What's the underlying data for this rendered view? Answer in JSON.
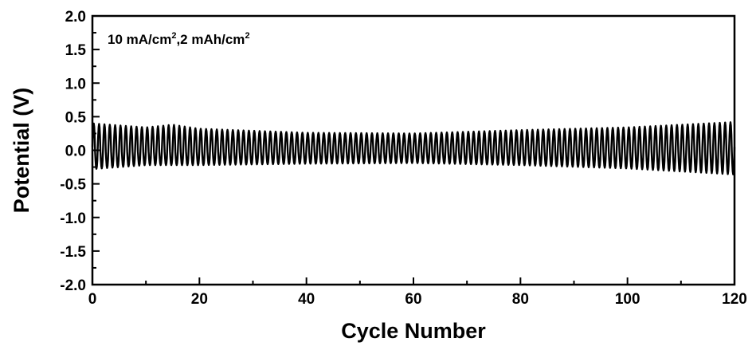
{
  "chart_data": {
    "type": "line",
    "title": "",
    "xlabel": "Cycle Number",
    "ylabel": "Potential (V)",
    "xlim": [
      0,
      120
    ],
    "ylim": [
      -2.0,
      2.0
    ],
    "xticks": [
      0,
      20,
      40,
      60,
      80,
      100,
      120
    ],
    "yticks": [
      -2.0,
      -1.5,
      -1.0,
      -0.5,
      0.0,
      0.5,
      1.0,
      1.5,
      2.0
    ],
    "xtick_labels": [
      "0",
      "20",
      "40",
      "60",
      "80",
      "100",
      "120"
    ],
    "ytick_labels": [
      "-2.0",
      "-1.5",
      "-1.0",
      "-0.5",
      "0.0",
      "0.5",
      "1.0",
      "1.5",
      "2.0"
    ],
    "annotation": {
      "current_density": "10 mA/cm",
      "current_sup": "2",
      "capacity": ",2 mAh/cm",
      "capacity_sup": "2"
    },
    "grid": false,
    "legend": "none",
    "line_color": "#000000",
    "series": [
      {
        "cycles": 120,
        "x": [
          0,
          10,
          15,
          20,
          40,
          60,
          80,
          100,
          120
        ],
        "upper": [
          0.4,
          0.34,
          0.38,
          0.32,
          0.26,
          0.25,
          0.3,
          0.34,
          0.42
        ],
        "lower": [
          -0.28,
          -0.22,
          -0.22,
          -0.22,
          -0.2,
          -0.19,
          -0.22,
          -0.27,
          -0.36
        ]
      }
    ]
  }
}
